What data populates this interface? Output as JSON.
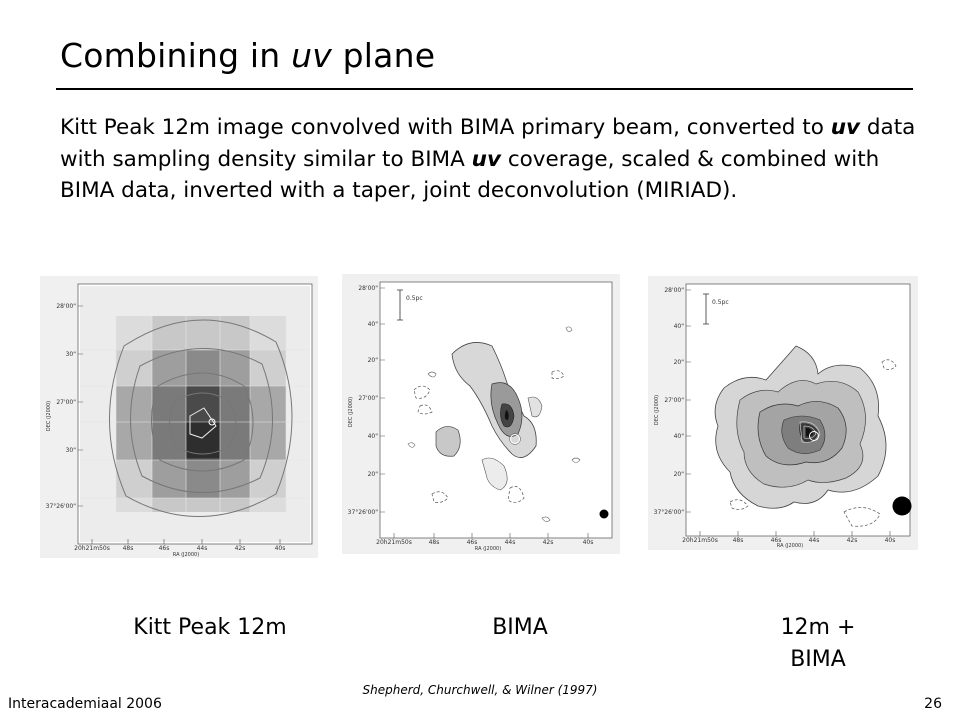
{
  "slide": {
    "title_prefix": "Combining in ",
    "title_em": "uv",
    "title_suffix": " plane",
    "body_1": "Kitt Peak 12m image convolved with BIMA primary beam, converted to ",
    "body_em_1": "uv",
    "body_2": " data with sampling density similar to BIMA ",
    "body_em_2": "uv",
    "body_3": " coverage, scaled & combined with BIMA data, inverted with a taper, joint deconvolution (MIRIAD).",
    "footer_left": "Interacademiaal 2006",
    "footer_center": "Shepherd, Churchwell, & Wilner (1997)",
    "footer_right": "26"
  },
  "panels": [
    {
      "caption": "Kitt Peak 12m",
      "y_ticks": [
        "28'00\"",
        "30\"",
        "27'00\"",
        "30\"",
        "37°26'00\""
      ],
      "x_ticks": [
        "20h21m50s",
        "48s",
        "46s",
        "44s",
        "42s",
        "40s"
      ],
      "x_label": "RA (J2000)",
      "y_label": "DEC (J2000)"
    },
    {
      "caption": "BIMA",
      "scale_label": "0.5pc",
      "y_ticks": [
        "28'00\"",
        "40\"",
        "20\"",
        "27'00\"",
        "40\"",
        "20\"",
        "37°26'00\""
      ],
      "x_ticks": [
        "20h21m50s",
        "48s",
        "46s",
        "44s",
        "42s",
        "40s"
      ],
      "x_label": "RA (J2000)",
      "y_label": "DEC (J2000)"
    },
    {
      "caption_line1": "12m +",
      "caption_line2": "BIMA",
      "scale_label": "0.5pc",
      "y_ticks": [
        "28'00\"",
        "40\"",
        "20\"",
        "27'00\"",
        "40\"",
        "20\"",
        "37°26'00\""
      ],
      "x_ticks": [
        "20h21m50s",
        "48s",
        "46s",
        "44s",
        "42s",
        "40s"
      ],
      "x_label": "RA (J2000)",
      "y_label": "DEC (J2000)"
    }
  ]
}
